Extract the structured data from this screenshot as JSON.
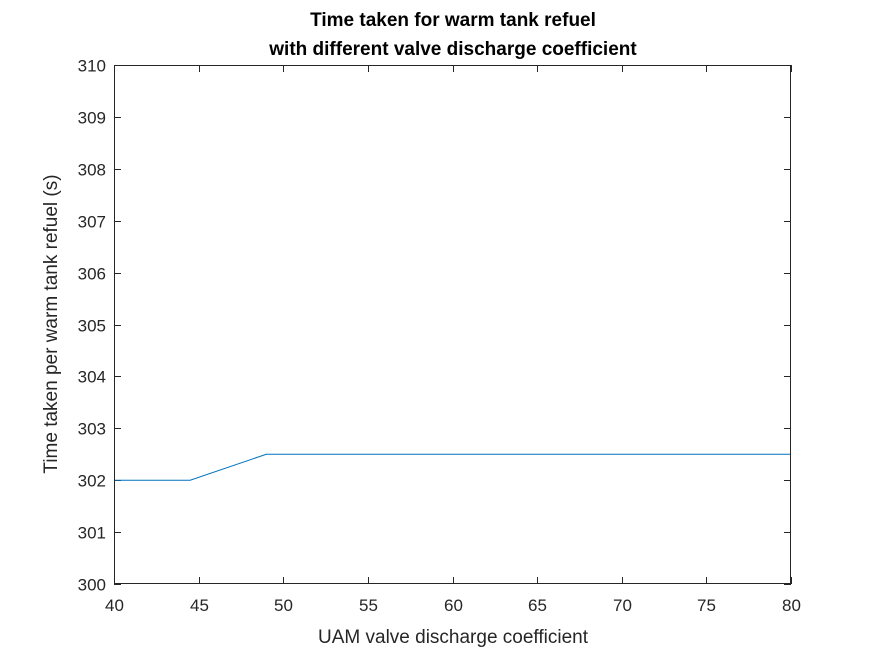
{
  "chart_data": {
    "type": "line",
    "title": [
      "Time taken for warm tank refuel",
      "with different valve discharge coefficient"
    ],
    "xlabel": "UAM valve discharge coefficient",
    "ylabel": "Time taken per warm tank refuel (s)",
    "xlim": [
      40,
      80
    ],
    "ylim": [
      300,
      310
    ],
    "xticks": [
      "40",
      "45",
      "50",
      "55",
      "60",
      "65",
      "70",
      "75",
      "80"
    ],
    "yticks": [
      "300",
      "301",
      "302",
      "303",
      "304",
      "305",
      "306",
      "307",
      "308",
      "309",
      "310"
    ],
    "grid": false,
    "series": [
      {
        "color": "#0072BD",
        "x": [
          40,
          44.5,
          49,
          80
        ],
        "y": [
          302,
          302,
          302.5,
          302.5
        ]
      }
    ]
  }
}
